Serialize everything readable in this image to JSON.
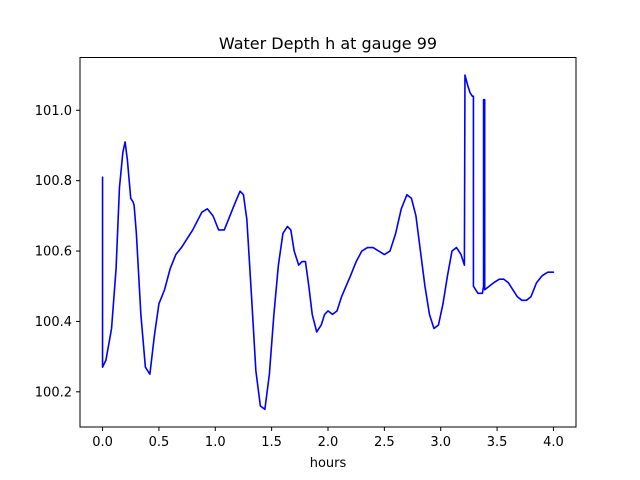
{
  "chart_data": {
    "type": "line",
    "title": "Water Depth h at gauge 99",
    "xlabel": "hours",
    "ylabel": "",
    "xlim": [
      -0.2,
      4.2
    ],
    "ylim": [
      100.1,
      101.15
    ],
    "x_ticks": [
      0.0,
      0.5,
      1.0,
      1.5,
      2.0,
      2.5,
      3.0,
      3.5,
      4.0
    ],
    "x_tick_labels": [
      "0.0",
      "0.5",
      "1.0",
      "1.5",
      "2.0",
      "2.5",
      "3.0",
      "3.5",
      "4.0"
    ],
    "y_ticks": [
      100.2,
      100.4,
      100.6,
      100.8,
      101.0
    ],
    "y_tick_labels": [
      "100.2",
      "100.4",
      "100.6",
      "100.8",
      "101.0"
    ],
    "grid": false,
    "legend": false,
    "series": [
      {
        "color": "#0000ff",
        "x": [
          0.0,
          0.0,
          0.03,
          0.08,
          0.12,
          0.15,
          0.18,
          0.2,
          0.22,
          0.25,
          0.27,
          0.28,
          0.3,
          0.34,
          0.38,
          0.42,
          0.46,
          0.5,
          0.55,
          0.6,
          0.65,
          0.7,
          0.8,
          0.88,
          0.93,
          0.98,
          1.03,
          1.08,
          1.13,
          1.18,
          1.22,
          1.25,
          1.28,
          1.32,
          1.36,
          1.4,
          1.44,
          1.48,
          1.52,
          1.56,
          1.6,
          1.64,
          1.67,
          1.7,
          1.74,
          1.77,
          1.8,
          1.83,
          1.86,
          1.9,
          1.94,
          1.97,
          2.0,
          2.04,
          2.08,
          2.12,
          2.16,
          2.2,
          2.25,
          2.3,
          2.35,
          2.4,
          2.45,
          2.5,
          2.55,
          2.6,
          2.65,
          2.7,
          2.74,
          2.78,
          2.82,
          2.86,
          2.9,
          2.94,
          2.98,
          3.02,
          3.06,
          3.1,
          3.14,
          3.18,
          3.21,
          3.215,
          3.24,
          3.26,
          3.28,
          3.29,
          3.29,
          3.33,
          3.37,
          3.38,
          3.38,
          3.39,
          3.39,
          3.39,
          3.43,
          3.47,
          3.52,
          3.56,
          3.6,
          3.64,
          3.68,
          3.72,
          3.76,
          3.8,
          3.85,
          3.9,
          3.95,
          4.0
        ],
        "y": [
          100.81,
          100.27,
          100.29,
          100.38,
          100.55,
          100.78,
          100.88,
          100.91,
          100.86,
          100.75,
          100.74,
          100.73,
          100.65,
          100.42,
          100.27,
          100.25,
          100.36,
          100.45,
          100.49,
          100.55,
          100.59,
          100.61,
          100.66,
          100.71,
          100.72,
          100.7,
          100.66,
          100.66,
          100.7,
          100.74,
          100.77,
          100.76,
          100.69,
          100.48,
          100.26,
          100.16,
          100.15,
          100.25,
          100.42,
          100.56,
          100.65,
          100.67,
          100.66,
          100.6,
          100.56,
          100.57,
          100.57,
          100.5,
          100.42,
          100.37,
          100.39,
          100.42,
          100.43,
          100.42,
          100.43,
          100.47,
          100.5,
          100.53,
          100.57,
          100.6,
          100.61,
          100.61,
          100.6,
          100.59,
          100.6,
          100.65,
          100.72,
          100.76,
          100.75,
          100.7,
          100.6,
          100.5,
          100.42,
          100.38,
          100.39,
          100.45,
          100.53,
          100.6,
          100.61,
          100.59,
          100.56,
          101.1,
          101.07,
          101.05,
          101.04,
          101.04,
          100.5,
          100.48,
          100.48,
          100.5,
          101.03,
          101.03,
          100.49,
          100.49,
          100.5,
          100.51,
          100.52,
          100.52,
          100.51,
          100.49,
          100.47,
          100.46,
          100.46,
          100.47,
          100.51,
          100.53,
          100.54,
          100.54
        ]
      }
    ]
  }
}
